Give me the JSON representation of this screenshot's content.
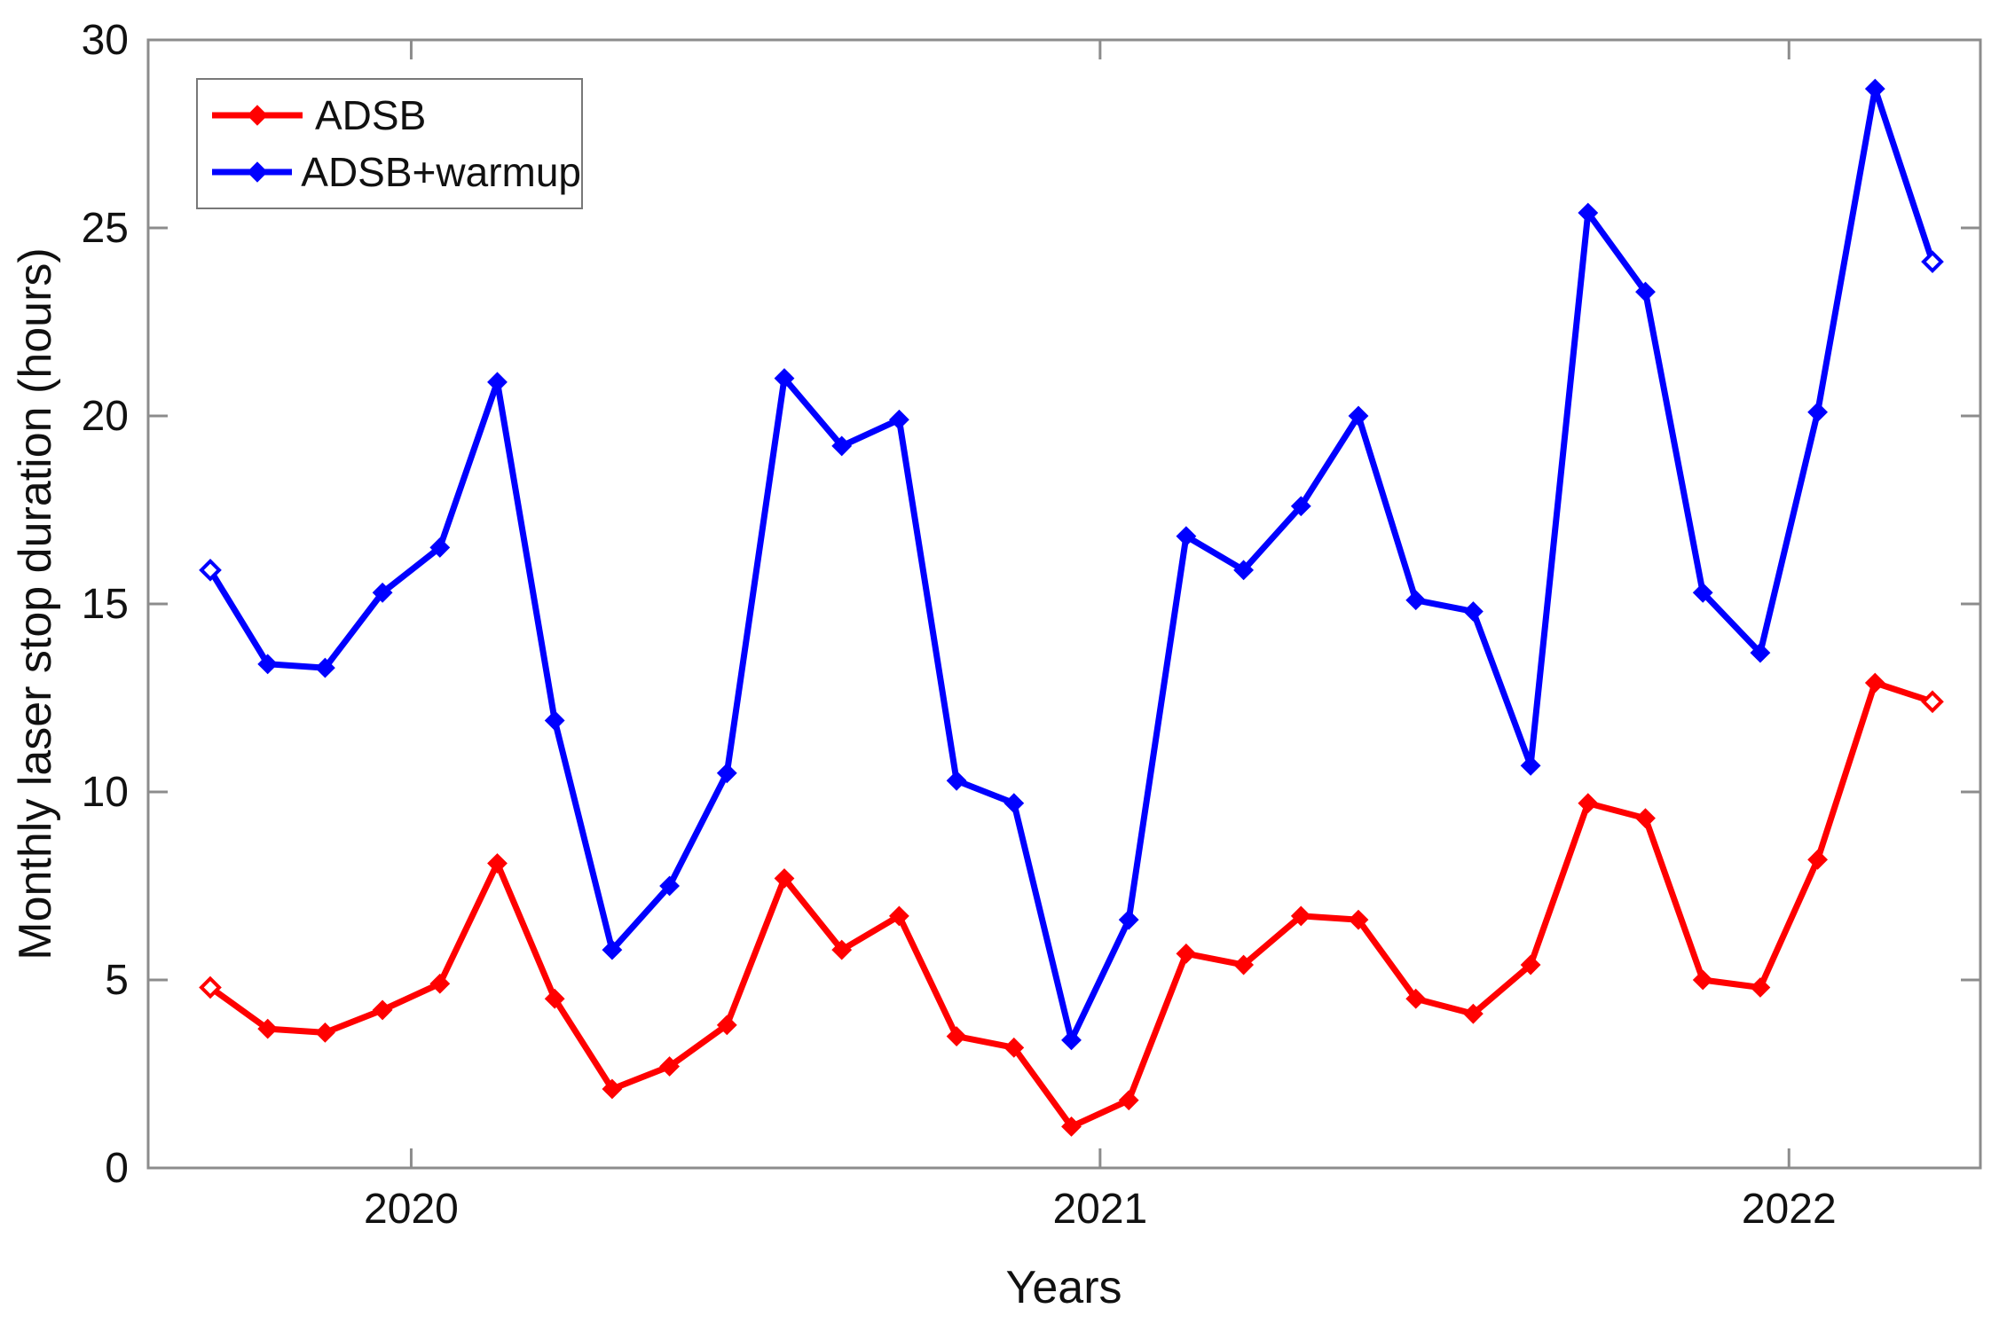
{
  "figure": {
    "background": "#ffffff",
    "ylabel": "Monthly laser stop duration (hours)",
    "xlabel": "Years"
  },
  "legend": {
    "position": "top-left",
    "items": [
      {
        "label": "ADSB",
        "color": "#ff0000"
      },
      {
        "label": "ADSB+warmup",
        "color": "#0000ff"
      }
    ]
  },
  "chart_data": {
    "type": "line",
    "title": "",
    "xlabel": "Years",
    "ylabel": "Monthly laser stop duration (hours)",
    "grid": false,
    "legend_position": "top-left",
    "ylim": [
      0,
      30
    ],
    "y_ticks": [
      0,
      5,
      10,
      15,
      20,
      25,
      30
    ],
    "x_tick_labels": [
      "2020",
      "2021",
      "2022"
    ],
    "x_tick_month_index": [
      3.5,
      15.5,
      27.5
    ],
    "x": [
      "Sep 2019",
      "Oct 2019",
      "Nov 2019",
      "Dec 2019",
      "Jan 2020",
      "Feb 2020",
      "Mar 2020",
      "Apr 2020",
      "May 2020",
      "Jun 2020",
      "Jul 2020",
      "Aug 2020",
      "Sep 2020",
      "Oct 2020",
      "Nov 2020",
      "Dec 2020",
      "Jan 2021",
      "Feb 2021",
      "Mar 2021",
      "Apr 2021",
      "May 2021",
      "Jun 2021",
      "Jul 2021",
      "Aug 2021",
      "Sep 2021",
      "Oct 2021",
      "Nov 2021",
      "Dec 2021",
      "Jan 2022",
      "Feb 2022",
      "Mar 2022"
    ],
    "series": [
      {
        "name": "ADSB",
        "color": "#ff0000",
        "values": [
          4.8,
          3.7,
          3.6,
          4.2,
          4.9,
          8.1,
          4.5,
          2.1,
          2.7,
          3.8,
          7.7,
          5.8,
          6.7,
          3.5,
          3.2,
          1.1,
          1.8,
          5.7,
          5.4,
          6.7,
          6.6,
          4.5,
          4.1,
          5.4,
          9.7,
          9.3,
          5.0,
          4.8,
          8.2,
          12.9,
          12.4
        ]
      },
      {
        "name": "ADSB+warmup",
        "color": "#0000ff",
        "values": [
          15.9,
          13.4,
          13.3,
          15.3,
          16.5,
          20.9,
          11.9,
          5.8,
          7.5,
          10.5,
          21.0,
          19.2,
          19.9,
          10.3,
          9.7,
          3.4,
          6.6,
          16.8,
          15.9,
          17.6,
          20.0,
          15.1,
          14.8,
          10.7,
          25.4,
          23.3,
          15.3,
          13.7,
          20.1,
          28.7,
          24.1
        ]
      }
    ]
  },
  "axis_style": {
    "box_color": "#8c8c8c",
    "tick_color": "#8c8c8c",
    "text_color": "#111111"
  }
}
